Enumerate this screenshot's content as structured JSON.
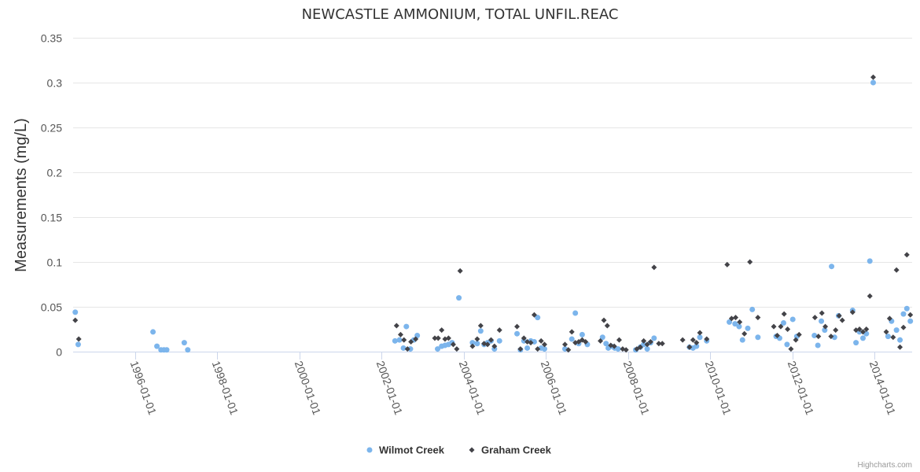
{
  "chart_data": {
    "type": "scatter",
    "title": "NEWCASTLE AMMONIUM, TOTAL UNFIL.REAC",
    "xlabel": "",
    "ylabel": "Measurements (mg/L)",
    "xlim": [
      "1994-07-01",
      "2014-12-01"
    ],
    "ylim": [
      0,
      0.35
    ],
    "yticks": [
      0,
      0.05,
      0.1,
      0.15,
      0.2,
      0.25,
      0.3,
      0.35
    ],
    "ytick_labels": [
      "0",
      "0.05",
      "0.1",
      "0.15",
      "0.2",
      "0.25",
      "0.3",
      "0.35"
    ],
    "xticks": [
      "1996-01-01",
      "1998-01-01",
      "2000-01-01",
      "2002-01-01",
      "2004-01-01",
      "2006-01-01",
      "2008-01-01",
      "2010-01-01",
      "2012-01-01",
      "2014-01-01"
    ],
    "grid": true,
    "legend_position": "bottom-center",
    "credits": "Highcharts.com",
    "series": [
      {
        "name": "Wilmot Creek",
        "color": "#7cb5ec",
        "marker": "circle",
        "points": [
          [
            "1994-07-20",
            0.044
          ],
          [
            "1994-08-15",
            0.008
          ],
          [
            "1996-06-10",
            0.022
          ],
          [
            "1996-07-15",
            0.006
          ],
          [
            "1996-08-20",
            0.002
          ],
          [
            "1996-09-15",
            0.002
          ],
          [
            "1996-10-10",
            0.002
          ],
          [
            "1997-03-15",
            0.01
          ],
          [
            "1997-04-15",
            0.002
          ],
          [
            "2002-05-01",
            0.012
          ],
          [
            "2002-06-10",
            0.013
          ],
          [
            "2002-07-15",
            0.004
          ],
          [
            "2002-08-10",
            0.028
          ],
          [
            "2002-09-15",
            0.003
          ],
          [
            "2002-10-15",
            0.013
          ],
          [
            "2002-11-15",
            0.018
          ],
          [
            "2003-05-15",
            0.003
          ],
          [
            "2003-06-20",
            0.006
          ],
          [
            "2003-07-20",
            0.007
          ],
          [
            "2003-08-20",
            0.008
          ],
          [
            "2003-09-20",
            0.01
          ],
          [
            "2003-11-20",
            0.06
          ],
          [
            "2004-03-20",
            0.01
          ],
          [
            "2004-05-01",
            0.009
          ],
          [
            "2004-06-01",
            0.023
          ],
          [
            "2004-07-01",
            0.008
          ],
          [
            "2004-08-01",
            0.01
          ],
          [
            "2004-09-01",
            0.012
          ],
          [
            "2004-10-01",
            0.003
          ],
          [
            "2004-11-15",
            0.012
          ],
          [
            "2005-04-20",
            0.02
          ],
          [
            "2005-05-20",
            0.002
          ],
          [
            "2005-06-20",
            0.012
          ],
          [
            "2005-07-20",
            0.004
          ],
          [
            "2005-08-20",
            0.012
          ],
          [
            "2005-09-20",
            0.011
          ],
          [
            "2005-10-20",
            0.038
          ],
          [
            "2005-11-20",
            0.004
          ],
          [
            "2005-12-20",
            0.003
          ],
          [
            "2006-06-20",
            0.003
          ],
          [
            "2006-08-20",
            0.014
          ],
          [
            "2006-09-20",
            0.043
          ],
          [
            "2006-10-20",
            0.009
          ],
          [
            "2006-11-20",
            0.019
          ],
          [
            "2007-01-05",
            0.008
          ],
          [
            "2007-05-20",
            0.016
          ],
          [
            "2007-06-20",
            0.009
          ],
          [
            "2007-07-10",
            0.004
          ],
          [
            "2007-08-05",
            0.006
          ],
          [
            "2007-09-05",
            0.004
          ],
          [
            "2007-10-05",
            0.003
          ],
          [
            "2008-03-10",
            0.002
          ],
          [
            "2008-04-20",
            0.005
          ],
          [
            "2008-05-20",
            0.008
          ],
          [
            "2008-06-20",
            0.003
          ],
          [
            "2008-07-20",
            0.01
          ],
          [
            "2008-08-20",
            0.015
          ],
          [
            "2009-07-01",
            0.005
          ],
          [
            "2009-08-01",
            0.004
          ],
          [
            "2009-09-01",
            0.006
          ],
          [
            "2009-10-01",
            0.016
          ],
          [
            "2009-12-01",
            0.012
          ],
          [
            "2010-06-20",
            0.033
          ],
          [
            "2010-08-10",
            0.031
          ],
          [
            "2010-09-15",
            0.028
          ],
          [
            "2010-10-15",
            0.013
          ],
          [
            "2010-12-01",
            0.026
          ],
          [
            "2011-01-10",
            0.047
          ],
          [
            "2011-03-01",
            0.016
          ],
          [
            "2011-08-10",
            0.017
          ],
          [
            "2011-09-10",
            0.015
          ],
          [
            "2011-10-15",
            0.032
          ],
          [
            "2011-11-15",
            0.008
          ],
          [
            "2012-01-05",
            0.036
          ],
          [
            "2012-02-10",
            0.017
          ],
          [
            "2012-07-15",
            0.018
          ],
          [
            "2012-08-15",
            0.007
          ],
          [
            "2012-09-15",
            0.034
          ],
          [
            "2012-10-15",
            0.024
          ],
          [
            "2012-12-15",
            0.095
          ],
          [
            "2013-01-10",
            0.016
          ],
          [
            "2013-02-15",
            0.04
          ],
          [
            "2013-06-20",
            0.046
          ],
          [
            "2013-07-20",
            0.01
          ],
          [
            "2013-08-20",
            0.022
          ],
          [
            "2013-09-20",
            0.015
          ],
          [
            "2013-10-20",
            0.02
          ],
          [
            "2013-11-20",
            0.101
          ],
          [
            "2013-12-20",
            0.3
          ],
          [
            "2014-05-01",
            0.017
          ],
          [
            "2014-06-01",
            0.034
          ],
          [
            "2014-07-15",
            0.024
          ],
          [
            "2014-08-15",
            0.013
          ],
          [
            "2014-09-15",
            0.042
          ],
          [
            "2014-10-15",
            0.048
          ],
          [
            "2014-11-15",
            0.034
          ]
        ]
      },
      {
        "name": "Graham Creek",
        "color": "#434348",
        "marker": "diamond",
        "points": [
          [
            "1994-07-20",
            0.035
          ],
          [
            "1994-08-20",
            0.014
          ],
          [
            "2002-05-15",
            0.029
          ],
          [
            "2002-06-20",
            0.019
          ],
          [
            "2002-07-20",
            0.013
          ],
          [
            "2002-08-20",
            0.003
          ],
          [
            "2002-09-20",
            0.011
          ],
          [
            "2002-11-01",
            0.014
          ],
          [
            "2003-04-20",
            0.015
          ],
          [
            "2003-05-20",
            0.015
          ],
          [
            "2003-06-20",
            0.024
          ],
          [
            "2003-07-20",
            0.014
          ],
          [
            "2003-08-20",
            0.015
          ],
          [
            "2003-10-01",
            0.008
          ],
          [
            "2003-11-01",
            0.003
          ],
          [
            "2003-12-01",
            0.09
          ],
          [
            "2004-03-20",
            0.006
          ],
          [
            "2004-05-01",
            0.014
          ],
          [
            "2004-06-01",
            0.029
          ],
          [
            "2004-07-01",
            0.009
          ],
          [
            "2004-08-01",
            0.008
          ],
          [
            "2004-09-01",
            0.013
          ],
          [
            "2004-10-01",
            0.006
          ],
          [
            "2004-11-15",
            0.024
          ],
          [
            "2005-04-20",
            0.028
          ],
          [
            "2005-05-20",
            0.003
          ],
          [
            "2005-06-20",
            0.015
          ],
          [
            "2005-07-20",
            0.011
          ],
          [
            "2005-08-20",
            0.01
          ],
          [
            "2005-09-20",
            0.041
          ],
          [
            "2005-10-20",
            0.003
          ],
          [
            "2005-11-20",
            0.012
          ],
          [
            "2005-12-20",
            0.008
          ],
          [
            "2006-06-20",
            0.008
          ],
          [
            "2006-07-20",
            0.002
          ],
          [
            "2006-08-20",
            0.022
          ],
          [
            "2006-09-20",
            0.01
          ],
          [
            "2006-10-20",
            0.011
          ],
          [
            "2006-11-20",
            0.013
          ],
          [
            "2006-12-20",
            0.011
          ],
          [
            "2007-05-01",
            0.012
          ],
          [
            "2007-06-01",
            0.035
          ],
          [
            "2007-07-01",
            0.029
          ],
          [
            "2007-08-01",
            0.007
          ],
          [
            "2007-09-01",
            0.006
          ],
          [
            "2007-10-15",
            0.013
          ],
          [
            "2007-11-15",
            0.003
          ],
          [
            "2007-12-15",
            0.002
          ],
          [
            "2008-03-20",
            0.003
          ],
          [
            "2008-04-20",
            0.005
          ],
          [
            "2008-05-20",
            0.012
          ],
          [
            "2008-06-20",
            0.008
          ],
          [
            "2008-07-20",
            0.011
          ],
          [
            "2008-08-20",
            0.094
          ],
          [
            "2008-10-01",
            0.009
          ],
          [
            "2008-11-01",
            0.009
          ],
          [
            "2009-05-01",
            0.013
          ],
          [
            "2009-07-01",
            0.005
          ],
          [
            "2009-08-01",
            0.013
          ],
          [
            "2009-09-01",
            0.01
          ],
          [
            "2009-10-01",
            0.021
          ],
          [
            "2009-12-01",
            0.014
          ],
          [
            "2010-06-01",
            0.097
          ],
          [
            "2010-07-10",
            0.037
          ],
          [
            "2010-08-15",
            0.038
          ],
          [
            "2010-09-20",
            0.033
          ],
          [
            "2010-11-01",
            0.02
          ],
          [
            "2010-12-20",
            0.1
          ],
          [
            "2011-03-01",
            0.038
          ],
          [
            "2011-07-20",
            0.028
          ],
          [
            "2011-08-20",
            0.018
          ],
          [
            "2011-09-20",
            0.028
          ],
          [
            "2011-10-20",
            0.042
          ],
          [
            "2011-11-20",
            0.025
          ],
          [
            "2011-12-20",
            0.003
          ],
          [
            "2012-02-01",
            0.013
          ],
          [
            "2012-03-01",
            0.019
          ],
          [
            "2012-07-20",
            0.038
          ],
          [
            "2012-08-20",
            0.017
          ],
          [
            "2012-09-20",
            0.043
          ],
          [
            "2012-10-20",
            0.028
          ],
          [
            "2012-12-10",
            0.017
          ],
          [
            "2013-01-20",
            0.024
          ],
          [
            "2013-02-20",
            0.04
          ],
          [
            "2013-03-20",
            0.035
          ],
          [
            "2013-06-20",
            0.044
          ],
          [
            "2013-07-20",
            0.024
          ],
          [
            "2013-08-20",
            0.025
          ],
          [
            "2013-09-20",
            0.022
          ],
          [
            "2013-10-20",
            0.025
          ],
          [
            "2013-11-20",
            0.062
          ],
          [
            "2013-12-20",
            0.306
          ],
          [
            "2014-04-15",
            0.022
          ],
          [
            "2014-05-15",
            0.037
          ],
          [
            "2014-06-15",
            0.016
          ],
          [
            "2014-07-15",
            0.091
          ],
          [
            "2014-08-15",
            0.005
          ],
          [
            "2014-09-15",
            0.027
          ],
          [
            "2014-10-15",
            0.108
          ],
          [
            "2014-11-15",
            0.041
          ]
        ]
      }
    ]
  }
}
